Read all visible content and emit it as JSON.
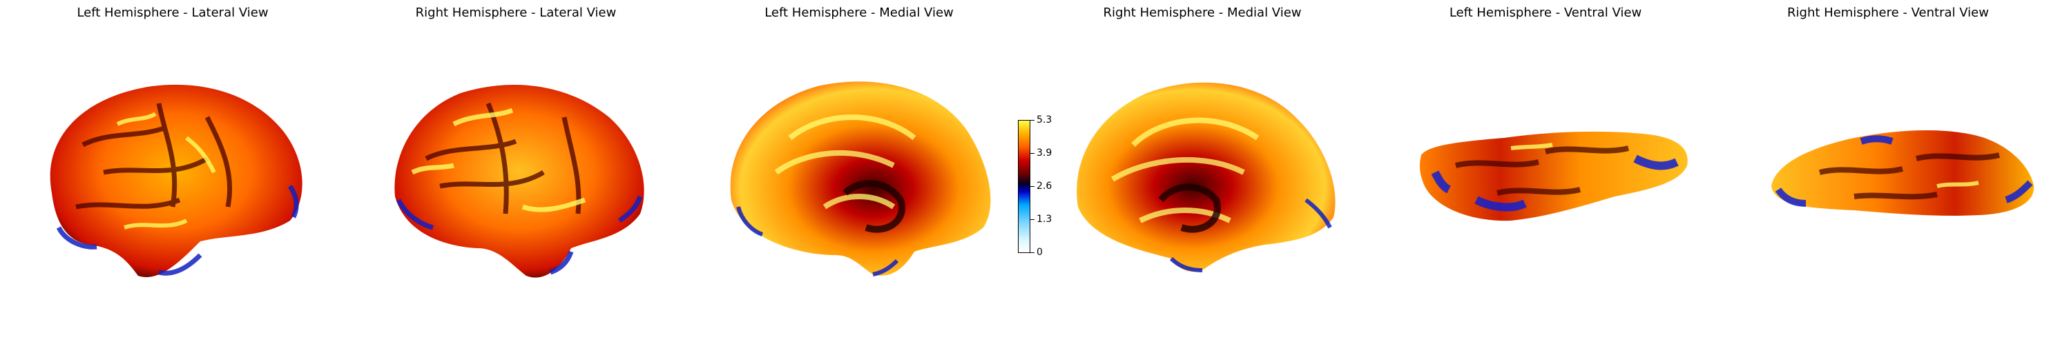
{
  "panels": [
    {
      "title": "Left Hemisphere - Lateral View"
    },
    {
      "title": "Right Hemisphere - Lateral View"
    },
    {
      "title": "Left Hemisphere - Medial View"
    },
    {
      "title": "Right Hemisphere - Medial View"
    },
    {
      "title": "Left Hemisphere - Ventral View"
    },
    {
      "title": "Right Hemisphere - Ventral View"
    }
  ],
  "colorbar": {
    "min": 0,
    "max": 5.3,
    "tick_labels": [
      "5.3",
      "3.9",
      "2.6",
      "1.3",
      "0"
    ]
  },
  "colors": {
    "high": "#ffff40",
    "mid_high": "#ff8000",
    "mid": "#c00000",
    "low_mid": "#0000d0",
    "low": "#00b0ff",
    "background": "#ffffff"
  }
}
